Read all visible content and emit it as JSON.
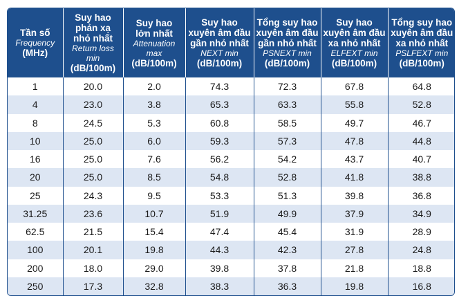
{
  "headers": [
    {
      "lines": [
        "Tần số"
      ],
      "sub": "Frequency",
      "unit": "(MHz)"
    },
    {
      "lines": [
        "Suy hao",
        "phản xạ",
        "nhỏ nhất"
      ],
      "sub": "Return loss min",
      "unit": "(dB/100m)"
    },
    {
      "lines": [
        "Suy hao",
        "lớn nhất"
      ],
      "sub": "Attenuation max",
      "unit": "(dB/100m)"
    },
    {
      "lines": [
        "Suy hao",
        "xuyên âm đầu",
        "gần nhỏ nhất"
      ],
      "sub": "NEXT min",
      "unit": "(dB/100m)"
    },
    {
      "lines": [
        "Tổng suy hao",
        "xuyên âm đầu",
        "gần nhỏ nhất"
      ],
      "sub": "PSNEXT min",
      "unit": "(dB/100m)"
    },
    {
      "lines": [
        "Suy hao",
        "xuyên âm đầu",
        "xa nhỏ nhất"
      ],
      "sub": "ELFEXT min",
      "unit": "(dB/100m)"
    },
    {
      "lines": [
        "Tổng suy hao",
        "xuyên âm đầu",
        "xa nhỏ nhất"
      ],
      "sub": "PSLFEXT min",
      "unit": "(dB/100m)"
    }
  ],
  "rows": [
    [
      "1",
      "20.0",
      "2.0",
      "74.3",
      "72.3",
      "67.8",
      "64.8"
    ],
    [
      "4",
      "23.0",
      "3.8",
      "65.3",
      "63.3",
      "55.8",
      "52.8"
    ],
    [
      "8",
      "24.5",
      "5.3",
      "60.8",
      "58.5",
      "49.7",
      "46.7"
    ],
    [
      "10",
      "25.0",
      "6.0",
      "59.3",
      "57.3",
      "47.8",
      "44.8"
    ],
    [
      "16",
      "25.0",
      "7.6",
      "56.2",
      "54.2",
      "43.7",
      "40.7"
    ],
    [
      "20",
      "25.0",
      "8.5",
      "54.8",
      "52.8",
      "41.8",
      "38.8"
    ],
    [
      "25",
      "24.3",
      "9.5",
      "53.3",
      "51.3",
      "39.8",
      "36.8"
    ],
    [
      "31.25",
      "23.6",
      "10.7",
      "51.9",
      "49.9",
      "37.9",
      "34.9"
    ],
    [
      "62.5",
      "21.5",
      "15.4",
      "47.4",
      "45.4",
      "31.9",
      "28.9"
    ],
    [
      "100",
      "20.1",
      "19.8",
      "44.3",
      "42.3",
      "27.8",
      "24.8"
    ],
    [
      "200",
      "18.0",
      "29.0",
      "39.8",
      "37.8",
      "21.8",
      "18.8"
    ],
    [
      "250",
      "17.3",
      "32.8",
      "38.3",
      "36.3",
      "19.8",
      "16.8"
    ]
  ],
  "colors": {
    "header_bg": "#1e4f8d",
    "stripe": "#dde6f3"
  }
}
